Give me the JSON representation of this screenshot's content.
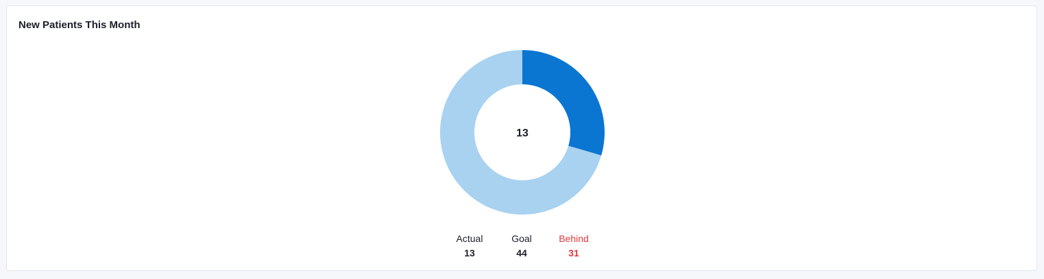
{
  "card": {
    "title": "New Patients This Month"
  },
  "chart_data": {
    "type": "pie",
    "title": "New Patients This Month",
    "center_label": "13",
    "slices": [
      {
        "label": "Actual",
        "value": 13,
        "color": "#0a76d1"
      },
      {
        "label": "Behind",
        "value": 31,
        "color": "#a8d2f0"
      }
    ]
  },
  "stats": [
    {
      "label": "Actual",
      "value": "13",
      "status": "normal"
    },
    {
      "label": "Goal",
      "value": "44",
      "status": "normal"
    },
    {
      "label": "Behind",
      "value": "31",
      "status": "behind"
    }
  ],
  "colors": {
    "actual": "#0a76d1",
    "remaining": "#a8d2f0",
    "behind_text": "#e0393e"
  }
}
